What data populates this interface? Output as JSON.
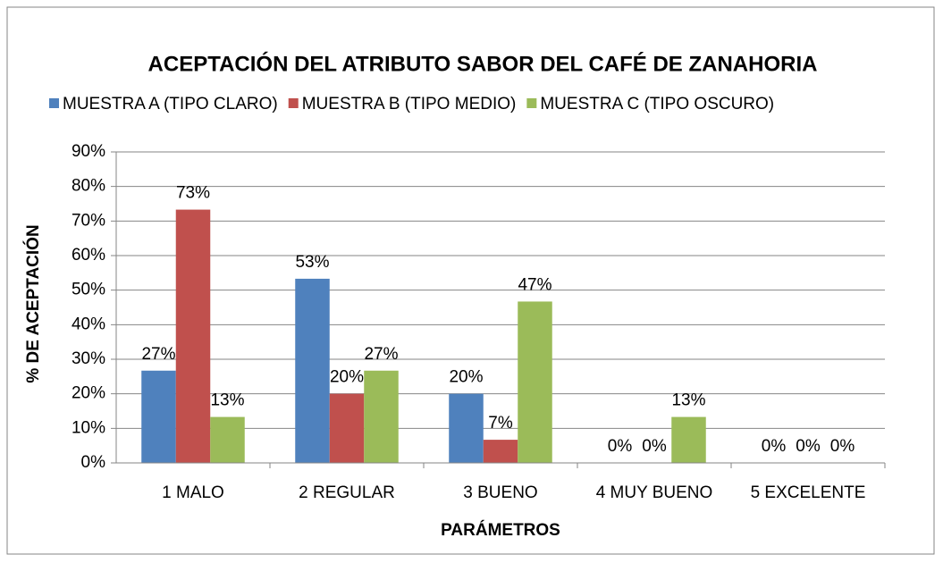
{
  "chart_data": {
    "type": "bar",
    "title": "ACEPTACIÓN DEL ATRIBUTO SABOR DEL CAFÉ DE ZANAHORIA",
    "y_label": "% DE ACEPTACIÓN",
    "x_label": "PARÁMETROS",
    "categories": [
      "1 MALO",
      "2 REGULAR",
      "3 BUENO",
      "4 MUY BUENO",
      "5 EXCELENTE"
    ],
    "series": [
      {
        "name": "MUESTRA A (TIPO CLARO)",
        "color": "#4f81bd",
        "values": [
          26.7,
          53.3,
          20,
          0,
          0
        ],
        "value_labels": [
          "27%",
          "53%",
          "20%",
          "0%",
          "0%"
        ]
      },
      {
        "name": "MUESTRA B (TIPO MEDIO)",
        "color": "#c0504d",
        "values": [
          73.3,
          20,
          6.7,
          0,
          0
        ],
        "value_labels": [
          "73%",
          "20%",
          "7%",
          "0%",
          "0%"
        ]
      },
      {
        "name": "MUESTRA C (TIPO OSCURO)",
        "color": "#9bbb59",
        "values": [
          13.3,
          26.7,
          46.7,
          13.3,
          0
        ],
        "value_labels": [
          "13%",
          "27%",
          "47%",
          "13%",
          "0%"
        ]
      }
    ],
    "ylim": [
      0,
      90
    ],
    "yticks": [
      {
        "value": 0,
        "label": "0%"
      },
      {
        "value": 10,
        "label": "10%"
      },
      {
        "value": 20,
        "label": "20%"
      },
      {
        "value": 30,
        "label": "30%"
      },
      {
        "value": 40,
        "label": "40%"
      },
      {
        "value": 50,
        "label": "50%"
      },
      {
        "value": 60,
        "label": "60%"
      },
      {
        "value": 70,
        "label": "70%"
      },
      {
        "value": 80,
        "label": "80%"
      },
      {
        "value": 90,
        "label": "90%"
      }
    ],
    "grid": true,
    "legend": "top"
  }
}
